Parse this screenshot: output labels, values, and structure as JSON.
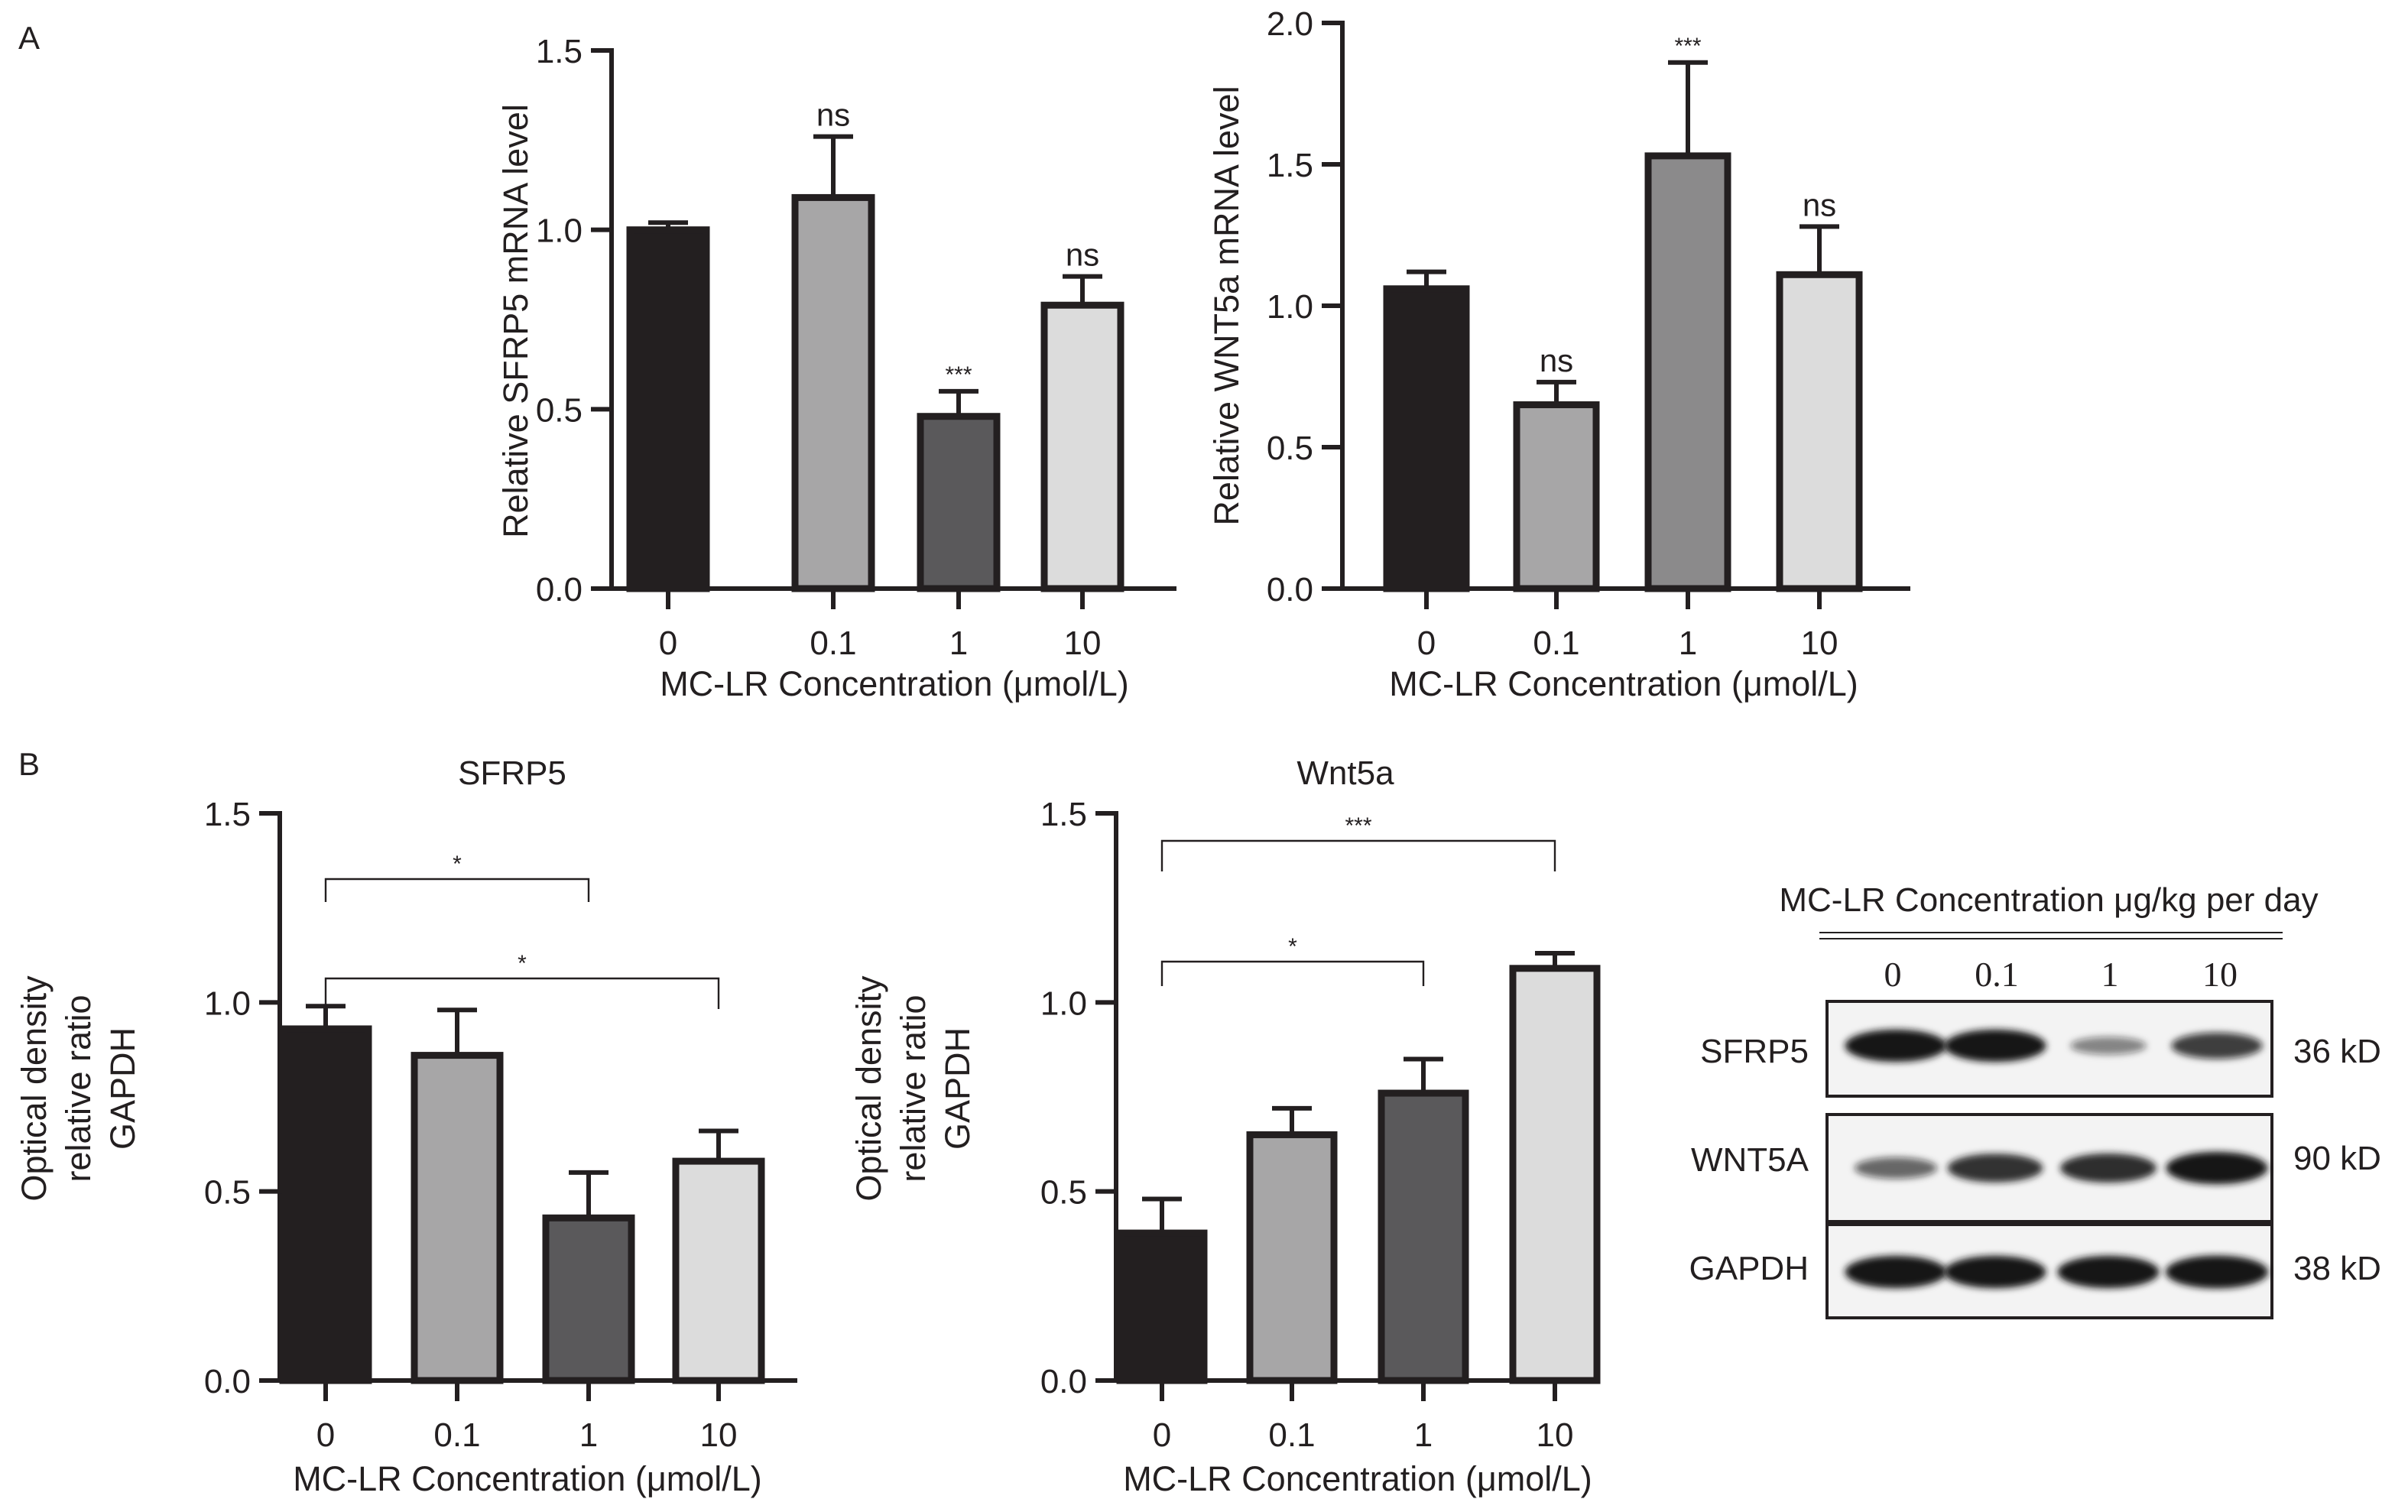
{
  "panels": {
    "a": "A",
    "b": "B"
  },
  "chart_data": [
    {
      "type": "bar",
      "categories": [
        "0",
        "0.1",
        "1",
        "10"
      ],
      "values": [
        1.0,
        1.09,
        0.48,
        0.79
      ],
      "errors": [
        0.02,
        0.17,
        0.07,
        0.08
      ],
      "annotations": [
        "",
        "ns",
        "***",
        "ns"
      ],
      "xlabel": "MC-LR Concentration (μmol/L)",
      "ylabel": [
        "Relative SFRP5 mRNA level"
      ],
      "ylim": [
        0,
        1.5
      ],
      "yticks": [
        0,
        0.5,
        1.0,
        1.5
      ],
      "ytick_labels": [
        "0.0",
        "0.5",
        "1.0",
        "1.5"
      ],
      "colors": [
        "#231f20",
        "#a7a6a7",
        "#5a595b",
        "#dcdcdc"
      ],
      "grid": false
    },
    {
      "type": "bar",
      "categories": [
        "0",
        "0.1",
        "1",
        "10"
      ],
      "values": [
        1.06,
        0.65,
        1.53,
        1.11
      ],
      "errors": [
        0.06,
        0.08,
        0.33,
        0.17
      ],
      "annotations": [
        "",
        "ns",
        "***",
        "ns"
      ],
      "xlabel": "MC-LR Concentration (μmol/L)",
      "ylabel": [
        "Relative WNT5a mRNA level"
      ],
      "ylim": [
        0,
        2.0
      ],
      "yticks": [
        0,
        0.5,
        1.0,
        1.5,
        2.0
      ],
      "ytick_labels": [
        "0.0",
        "0.5",
        "1.0",
        "1.5",
        "2.0"
      ],
      "colors": [
        "#231f20",
        "#a7a6a7",
        "#8b8a8b",
        "#dcdcdc"
      ],
      "grid": false
    },
    {
      "type": "bar",
      "title": "SFRP5",
      "categories": [
        "0",
        "0.1",
        "1",
        "10"
      ],
      "values": [
        0.93,
        0.86,
        0.43,
        0.58
      ],
      "errors": [
        0.06,
        0.12,
        0.12,
        0.08
      ],
      "brackets": [
        {
          "from": "0",
          "to": "1",
          "label": "*"
        },
        {
          "from": "0",
          "to": "10",
          "label": "*"
        }
      ],
      "xlabel": "MC-LR Concentration (μmol/L)",
      "ylabel": [
        "Optical density",
        "relative ratio",
        "GAPDH"
      ],
      "ylim": [
        0,
        1.5
      ],
      "yticks": [
        0,
        0.5,
        1.0,
        1.5
      ],
      "ytick_labels": [
        "0.0",
        "0.5",
        "1.0",
        "1.5"
      ],
      "colors": [
        "#231f20",
        "#a7a6a7",
        "#5a595b",
        "#dcdcdc"
      ],
      "grid": false
    },
    {
      "type": "bar",
      "title": "Wnt5a",
      "categories": [
        "0",
        "0.1",
        "1",
        "10"
      ],
      "values": [
        0.39,
        0.65,
        0.76,
        1.09
      ],
      "errors": [
        0.09,
        0.07,
        0.09,
        0.04
      ],
      "brackets": [
        {
          "from": "0",
          "to": "10",
          "label": "***"
        },
        {
          "from": "0",
          "to": "1",
          "label": "*"
        }
      ],
      "xlabel": "MC-LR Concentration (μmol/L)",
      "ylabel": [
        "Optical density",
        "relative ratio",
        "GAPDH"
      ],
      "ylim": [
        0,
        1.5
      ],
      "yticks": [
        0,
        0.5,
        1.0,
        1.5
      ],
      "ytick_labels": [
        "0.0",
        "0.5",
        "1.0",
        "1.5"
      ],
      "colors": [
        "#231f20",
        "#a7a6a7",
        "#5a595b",
        "#dcdcdc"
      ],
      "grid": false
    }
  ],
  "blot": {
    "title": "MC-LR Concentration μg/kg per day",
    "lanes": [
      "0",
      "0.1",
      "1",
      "10"
    ],
    "rows": [
      {
        "name": "SFRP5",
        "size": "36 kD",
        "intensity": [
          0.95,
          0.95,
          0.35,
          0.7
        ]
      },
      {
        "name": "WNT5A",
        "size": "90 kD",
        "intensity": [
          0.5,
          0.8,
          0.82,
          0.95
        ]
      },
      {
        "name": "GAPDH",
        "size": "38 kD",
        "intensity": [
          0.95,
          0.95,
          0.95,
          0.97
        ]
      }
    ]
  }
}
